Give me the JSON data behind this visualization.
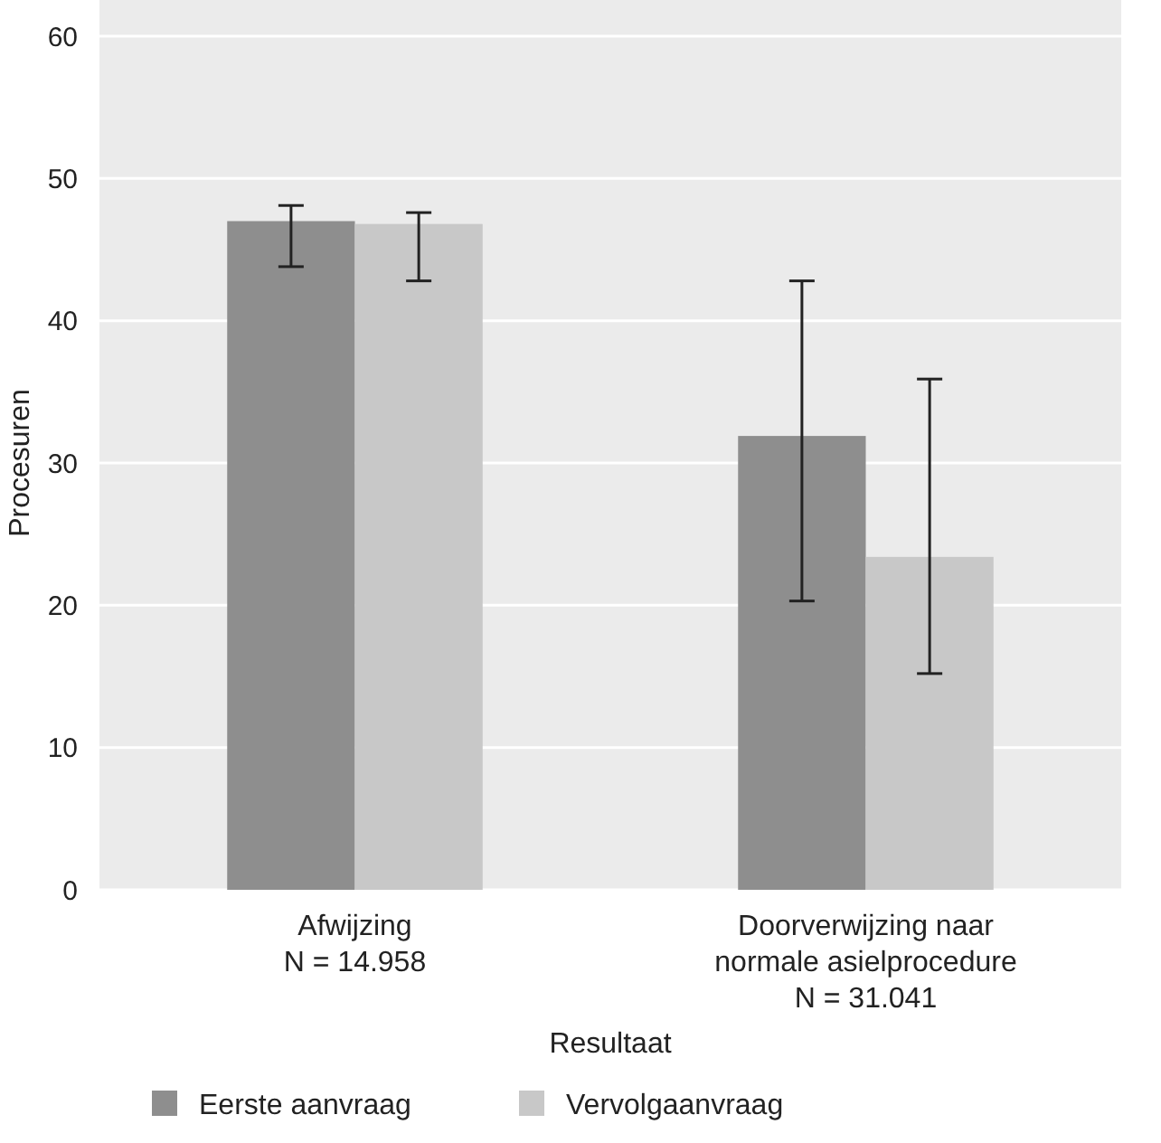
{
  "chart_data": {
    "type": "bar",
    "xlabel": "Resultaat",
    "ylabel": "Procesuren",
    "categories": [
      "Afwijzing\nN = 14.958",
      "Doorverwijzing naar\nnormale asielprocedure\nN = 31.041"
    ],
    "series": [
      {
        "name": "Eerste aanvraag",
        "color": "#8e8e8e",
        "values": [
          47.0,
          31.9
        ],
        "errors": [
          [
            43.8,
            48.1
          ],
          [
            20.3,
            42.8
          ]
        ]
      },
      {
        "name": "Vervolgaanvraag",
        "color": "#c8c8c8",
        "values": [
          46.8,
          23.4
        ],
        "errors": [
          [
            42.8,
            47.6
          ],
          [
            15.2,
            35.9
          ]
        ]
      }
    ],
    "ylim": [
      0,
      60
    ],
    "yticks": [
      0,
      10,
      20,
      30,
      40,
      50,
      60
    ],
    "grid": "y",
    "legend": "bottom left"
  }
}
